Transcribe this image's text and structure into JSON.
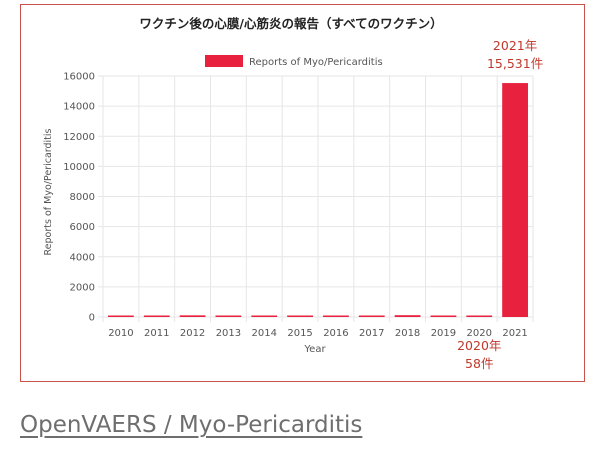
{
  "chart_data": {
    "type": "bar",
    "title": "ワクチン後の心膜/心筋炎の報告（すべてのワクチン）",
    "legend": [
      "Reports of Myo/Pericarditis"
    ],
    "legend_position": "top",
    "xlabel": "Year",
    "ylabel": "Reports of Myo/Pericarditis",
    "categories": [
      "2010",
      "2011",
      "2012",
      "2013",
      "2014",
      "2015",
      "2016",
      "2017",
      "2018",
      "2019",
      "2020",
      "2021"
    ],
    "series": [
      {
        "name": "Reports of Myo/Pericarditis",
        "values": [
          70,
          75,
          110,
          90,
          75,
          30,
          35,
          65,
          120,
          75,
          58,
          15531
        ]
      }
    ],
    "ylim": [
      0,
      16000
    ],
    "yticks": [
      "0",
      "2000",
      "4000",
      "6000",
      "8000",
      "10000",
      "12000",
      "14000",
      "16000"
    ],
    "grid": true,
    "colors": {
      "bar": "#e8213f",
      "grid": "#e6e6e6",
      "annotation": "#c0392b",
      "border": "#c9534a"
    },
    "annotations": [
      {
        "lines": [
          "2021年",
          "15,531件"
        ],
        "category": "2021",
        "placement": "above"
      },
      {
        "lines": [
          "2020年",
          "58件"
        ],
        "category": "2020",
        "placement": "below"
      }
    ]
  },
  "footer": {
    "link_text": "OpenVAERS / Myo-Pericarditis"
  }
}
